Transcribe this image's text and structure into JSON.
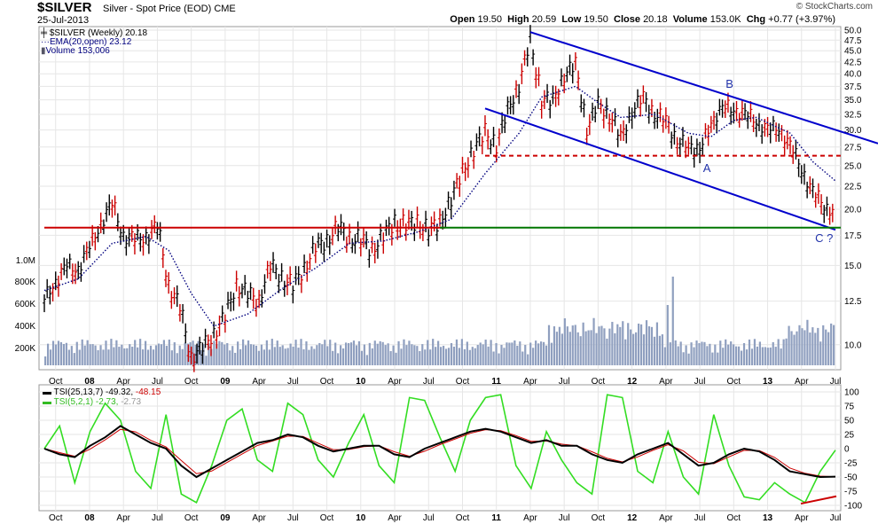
{
  "header": {
    "symbol": "$SILVER",
    "subtitle": "Silver - Spot Price (EOD)",
    "exchange": "CME",
    "date": "25-Jul-2013",
    "brand": "© StockCharts.com",
    "open_label": "Open",
    "open": "19.50",
    "high_label": "High",
    "high": "20.59",
    "low_label": "Low",
    "low": "19.50",
    "close_label": "Close",
    "close": "20.18",
    "volume_label": "Volume",
    "volume": "153.0K",
    "chg_label": "Chg",
    "chg": "+0.77 (+3.97%)"
  },
  "legend": {
    "price": "$SILVER (Weekly) 20.18",
    "ema": "EMA(20,open) 23.12",
    "volume": "Volume 153,006",
    "tsi1_name": "TSI(25,13,7)",
    "tsi1_a": "-49.32",
    "tsi1_b": "-48.15",
    "tsi2_name": "TSI(5,2,1)",
    "tsi2_a": "-2.73",
    "tsi2_b": "-2.73"
  },
  "annotations": {
    "A": "A",
    "B": "B",
    "C": "C ?"
  },
  "colors": {
    "up": "#000000",
    "down": "#cc0000",
    "ema": "#00007f",
    "volume": "#8f9fbf",
    "channel": "#0000cc",
    "support_red": "#cc0000",
    "support_green": "#007700",
    "tsi_long": "#000000",
    "tsi_long_signal": "#cc0000",
    "tsi_short": "#33dd22"
  },
  "chart_data": [
    {
      "type": "line",
      "series": [
        {
          "name": "$SILVER (Weekly)",
          "values": [
            {
              "x": "2007-09",
              "y": 12.5
            },
            {
              "x": "2007-10",
              "y": 13.8
            },
            {
              "x": "2007-11",
              "y": 14.8
            },
            {
              "x": "2007-12",
              "y": 14.7
            },
            {
              "x": "2008-01",
              "y": 16.3
            },
            {
              "x": "2008-02",
              "y": 18.5
            },
            {
              "x": "2008-03",
              "y": 20.4
            },
            {
              "x": "2008-04",
              "y": 17.4
            },
            {
              "x": "2008-05",
              "y": 17.0
            },
            {
              "x": "2008-06",
              "y": 17.3
            },
            {
              "x": "2008-07",
              "y": 18.2
            },
            {
              "x": "2008-08",
              "y": 13.5
            },
            {
              "x": "2008-09",
              "y": 12.0
            },
            {
              "x": "2008-10",
              "y": 9.3
            },
            {
              "x": "2008-11",
              "y": 9.8
            },
            {
              "x": "2008-12",
              "y": 10.5
            },
            {
              "x": "2009-01",
              "y": 11.5
            },
            {
              "x": "2009-02",
              "y": 13.5
            },
            {
              "x": "2009-03",
              "y": 12.9
            },
            {
              "x": "2009-04",
              "y": 12.4
            },
            {
              "x": "2009-05",
              "y": 15.0
            },
            {
              "x": "2009-06",
              "y": 14.0
            },
            {
              "x": "2009-07",
              "y": 13.5
            },
            {
              "x": "2009-08",
              "y": 14.6
            },
            {
              "x": "2009-09",
              "y": 16.5
            },
            {
              "x": "2009-10",
              "y": 16.8
            },
            {
              "x": "2009-11",
              "y": 18.3
            },
            {
              "x": "2009-12",
              "y": 17.0
            },
            {
              "x": "2010-01",
              "y": 17.2
            },
            {
              "x": "2010-02",
              "y": 16.0
            },
            {
              "x": "2010-03",
              "y": 17.5
            },
            {
              "x": "2010-04",
              "y": 18.5
            },
            {
              "x": "2010-05",
              "y": 18.5
            },
            {
              "x": "2010-06",
              "y": 18.5
            },
            {
              "x": "2010-07",
              "y": 18.0
            },
            {
              "x": "2010-08",
              "y": 18.5
            },
            {
              "x": "2010-09",
              "y": 21.0
            },
            {
              "x": "2010-10",
              "y": 24.0
            },
            {
              "x": "2010-11",
              "y": 27.0
            },
            {
              "x": "2010-12",
              "y": 29.5
            },
            {
              "x": "2011-01",
              "y": 27.5
            },
            {
              "x": "2011-02",
              "y": 33.0
            },
            {
              "x": "2011-03",
              "y": 37.5
            },
            {
              "x": "2011-04",
              "y": 47.0
            },
            {
              "x": "2011-05",
              "y": 35.0
            },
            {
              "x": "2011-06",
              "y": 34.5
            },
            {
              "x": "2011-07",
              "y": 39.5
            },
            {
              "x": "2011-08",
              "y": 41.5
            },
            {
              "x": "2011-09",
              "y": 30.0
            },
            {
              "x": "2011-10",
              "y": 34.0
            },
            {
              "x": "2011-11",
              "y": 32.5
            },
            {
              "x": "2011-12",
              "y": 28.5
            },
            {
              "x": "2012-01",
              "y": 33.0
            },
            {
              "x": "2012-02",
              "y": 35.0
            },
            {
              "x": "2012-03",
              "y": 32.5
            },
            {
              "x": "2012-04",
              "y": 31.0
            },
            {
              "x": "2012-05",
              "y": 28.5
            },
            {
              "x": "2012-06",
              "y": 27.0
            },
            {
              "x": "2012-07",
              "y": 27.5
            },
            {
              "x": "2012-08",
              "y": 30.0
            },
            {
              "x": "2012-09",
              "y": 34.5
            },
            {
              "x": "2012-10",
              "y": 32.0
            },
            {
              "x": "2012-11",
              "y": 33.5
            },
            {
              "x": "2012-12",
              "y": 30.0
            },
            {
              "x": "2013-01",
              "y": 31.0
            },
            {
              "x": "2013-02",
              "y": 29.0
            },
            {
              "x": "2013-03",
              "y": 28.5
            },
            {
              "x": "2013-04",
              "y": 23.5
            },
            {
              "x": "2013-05",
              "y": 22.5
            },
            {
              "x": "2013-06",
              "y": 19.5
            },
            {
              "x": "2013-07",
              "y": 20.18
            }
          ]
        },
        {
          "name": "EMA(20,open)",
          "values": [
            {
              "x": "2007-09",
              "y": 13.2
            },
            {
              "x": "2007-12",
              "y": 14.0
            },
            {
              "x": "2008-03",
              "y": 16.8
            },
            {
              "x": "2008-06",
              "y": 17.4
            },
            {
              "x": "2008-08",
              "y": 16.2
            },
            {
              "x": "2008-10",
              "y": 13.0
            },
            {
              "x": "2008-12",
              "y": 11.0
            },
            {
              "x": "2009-03",
              "y": 11.7
            },
            {
              "x": "2009-06",
              "y": 13.3
            },
            {
              "x": "2009-09",
              "y": 14.8
            },
            {
              "x": "2009-12",
              "y": 16.8
            },
            {
              "x": "2010-03",
              "y": 17.0
            },
            {
              "x": "2010-06",
              "y": 17.8
            },
            {
              "x": "2010-09",
              "y": 19.0
            },
            {
              "x": "2010-12",
              "y": 24.0
            },
            {
              "x": "2011-03",
              "y": 29.5
            },
            {
              "x": "2011-05",
              "y": 35.5
            },
            {
              "x": "2011-08",
              "y": 37.5
            },
            {
              "x": "2011-10",
              "y": 34.5
            },
            {
              "x": "2011-12",
              "y": 32.0
            },
            {
              "x": "2012-03",
              "y": 32.5
            },
            {
              "x": "2012-06",
              "y": 29.5
            },
            {
              "x": "2012-08",
              "y": 29.0
            },
            {
              "x": "2012-10",
              "y": 31.5
            },
            {
              "x": "2012-12",
              "y": 32.0
            },
            {
              "x": "2013-03",
              "y": 29.5
            },
            {
              "x": "2013-05",
              "y": 25.5
            },
            {
              "x": "2013-07",
              "y": 23.12
            }
          ]
        }
      ],
      "ylim": [
        9,
        50
      ],
      "y_scale": "log",
      "y_ticks": [
        "50.0",
        "47.5",
        "45.0",
        "42.5",
        "40.0",
        "37.5",
        "35.0",
        "32.5",
        "30.0",
        "27.5",
        "25.0",
        "22.5",
        "20.0",
        "17.5",
        "15.0",
        "12.5",
        "10.0"
      ],
      "vol_ticks": [
        "1.0M",
        "800K",
        "600K",
        "400K",
        "200K"
      ],
      "x_ticks": [
        "Oct",
        "08",
        "Apr",
        "Jul",
        "Oct",
        "09",
        "Apr",
        "Jul",
        "Oct",
        "10",
        "Apr",
        "Jul",
        "Oct",
        "11",
        "Apr",
        "Jul",
        "Oct",
        "12",
        "Apr",
        "Jul",
        "Oct",
        "13",
        "Apr",
        "Jul"
      ],
      "lines": [
        {
          "kind": "channel-top",
          "from": {
            "x": "2011-04",
            "y": 49.5
          },
          "to": {
            "x": "2013-12",
            "y": 28.0
          }
        },
        {
          "kind": "channel-bottom",
          "from": {
            "x": "2010-12",
            "y": 33.5
          },
          "to": {
            "x": "2013-07",
            "y": 18.0
          }
        },
        {
          "kind": "support",
          "y": 26.3,
          "style": "dashed",
          "from": "2010-12",
          "to": "2013-07"
        },
        {
          "kind": "support",
          "y": 18.2,
          "style": "solid",
          "from": "2007-09",
          "to": "2010-08"
        },
        {
          "kind": "support",
          "y": 18.2,
          "style": "solid",
          "from": "2010-08",
          "to": "2013-07"
        }
      ]
    },
    {
      "type": "line",
      "series": [
        {
          "name": "TSI(25,13,7)",
          "values": [
            0,
            -10,
            -15,
            5,
            20,
            40,
            25,
            10,
            0,
            -30,
            -50,
            -35,
            -20,
            -5,
            10,
            15,
            25,
            20,
            5,
            -5,
            0,
            5,
            5,
            -10,
            -15,
            0,
            10,
            20,
            30,
            35,
            30,
            20,
            10,
            15,
            5,
            5,
            -10,
            -20,
            -25,
            -10,
            0,
            10,
            -10,
            -30,
            -25,
            -10,
            0,
            -5,
            -20,
            -40,
            -45,
            -50,
            -49.32
          ]
        },
        {
          "name": "TSI(5,2,1)",
          "values": [
            0,
            40,
            -60,
            30,
            80,
            50,
            -40,
            -70,
            60,
            -80,
            -95,
            -30,
            50,
            70,
            -20,
            -40,
            80,
            60,
            -20,
            -50,
            10,
            60,
            -30,
            -60,
            90,
            85,
            20,
            -40,
            50,
            90,
            95,
            -30,
            -70,
            30,
            -20,
            -60,
            -80,
            95,
            90,
            -40,
            -60,
            30,
            -50,
            -80,
            60,
            -30,
            -85,
            -90,
            -60,
            -80,
            -95,
            -40,
            -2.73
          ]
        }
      ],
      "ylim": [
        -100,
        100
      ],
      "y_ticks": [
        "100",
        "75",
        "50",
        "25",
        "0",
        "-25",
        "-50",
        "-75",
        "-100"
      ],
      "x_ticks": [
        "Oct",
        "08",
        "Apr",
        "Jul",
        "Oct",
        "09",
        "Apr",
        "Jul",
        "Oct",
        "10",
        "Apr",
        "Jul",
        "Oct",
        "11",
        "Apr",
        "Jul",
        "Oct",
        "12",
        "Apr",
        "Jul",
        "Oct",
        "13",
        "Apr",
        "Jul"
      ]
    }
  ]
}
